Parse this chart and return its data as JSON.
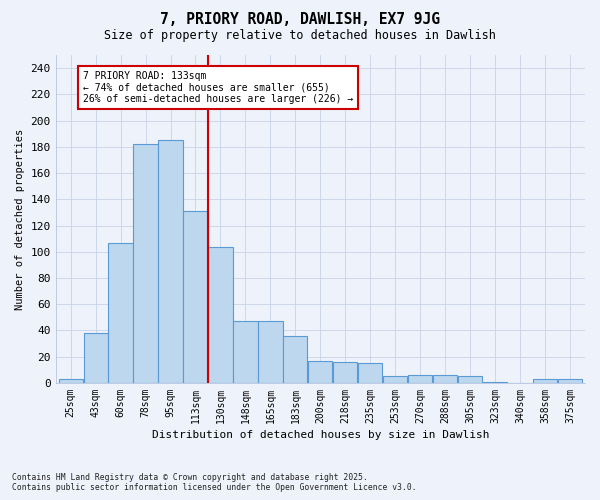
{
  "title1": "7, PRIORY ROAD, DAWLISH, EX7 9JG",
  "title2": "Size of property relative to detached houses in Dawlish",
  "xlabel": "Distribution of detached houses by size in Dawlish",
  "ylabel": "Number of detached properties",
  "bin_labels": [
    "25sqm",
    "43sqm",
    "60sqm",
    "78sqm",
    "95sqm",
    "113sqm",
    "130sqm",
    "148sqm",
    "165sqm",
    "183sqm",
    "200sqm",
    "218sqm",
    "235sqm",
    "253sqm",
    "270sqm",
    "288sqm",
    "305sqm",
    "323sqm",
    "340sqm",
    "358sqm",
    "375sqm"
  ],
  "bar_heights": [
    3,
    38,
    107,
    182,
    185,
    131,
    104,
    47,
    47,
    36,
    17,
    16,
    15,
    5,
    6,
    6,
    5,
    1,
    0,
    3,
    3
  ],
  "bar_color": "#BDD7EE",
  "bar_edge_color": "#5B9BD5",
  "annotation_line1": "7 PRIORY ROAD: 133sqm",
  "annotation_line2": "← 74% of detached houses are smaller (655)",
  "annotation_line3": "26% of semi-detached houses are larger (226) →",
  "annotation_box_color": "#ffffff",
  "annotation_box_edge": "#cc0000",
  "vline_color": "#cc0000",
  "ylim_max": 250,
  "yticks": [
    0,
    20,
    40,
    60,
    80,
    100,
    120,
    140,
    160,
    180,
    200,
    220,
    240
  ],
  "footnote1": "Contains HM Land Registry data © Crown copyright and database right 2025.",
  "footnote2": "Contains public sector information licensed under the Open Government Licence v3.0.",
  "bg_color": "#eef2fa"
}
